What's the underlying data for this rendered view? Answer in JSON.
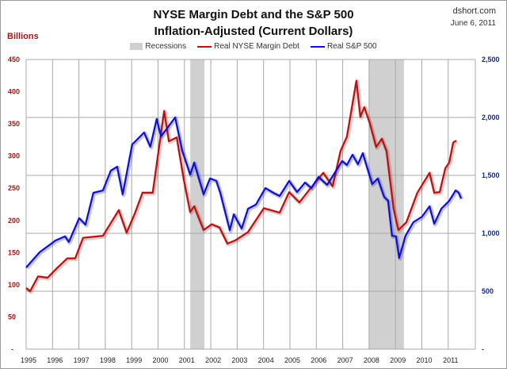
{
  "header": {
    "title": "NYSE Margin Debt and the S&P 500",
    "subtitle": "Inflation-Adjusted (Current Dollars)",
    "source": "dshort.com",
    "date": "June 6, 2011",
    "left_unit": "Billions"
  },
  "chart_data": {
    "type": "line",
    "title": "NYSE Margin Debt and the S&P 500 Inflation-Adjusted (Current Dollars)",
    "xlabel": "",
    "ylabel": "Billions",
    "xlim": [
      1995,
      2012
    ],
    "ylim_left": [
      0,
      450
    ],
    "ylim_right": [
      0,
      2500
    ],
    "x_ticks": [
      "1995",
      "1996",
      "1997",
      "1998",
      "1999",
      "2000",
      "2001",
      "2002",
      "2003",
      "2004",
      "2005",
      "2006",
      "2007",
      "2008",
      "2009",
      "2010",
      "2011"
    ],
    "left_ticks": [
      "-",
      "50",
      "100",
      "150",
      "200",
      "250",
      "300",
      "350",
      "400",
      "450"
    ],
    "right_ticks": [
      "-",
      "500",
      "1,000",
      "1,500",
      "2,000",
      "2,500"
    ],
    "grid": true,
    "legend_position": "top-center",
    "legend": [
      "Recessions",
      "Real NYSE Margin Debt",
      "Real S&P 500"
    ],
    "colors": {
      "margin": "#b01515",
      "sp500": "#1010c8",
      "recession": "#d0d0d0",
      "left_axis": "#a01818",
      "right_axis": "#1a2a80"
    },
    "recessions": [
      [
        2001.22,
        2001.76
      ],
      [
        2008.0,
        2009.32
      ]
    ],
    "series": [
      {
        "name": "Real NYSE Margin Debt",
        "axis": "left",
        "points": [
          [
            1995.0,
            95
          ],
          [
            1995.15,
            90
          ],
          [
            1995.45,
            113
          ],
          [
            1995.81,
            111
          ],
          [
            1996.17,
            126
          ],
          [
            1996.56,
            141
          ],
          [
            1996.86,
            141
          ],
          [
            1997.16,
            173
          ],
          [
            1997.91,
            176
          ],
          [
            1998.51,
            216
          ],
          [
            1998.81,
            181
          ],
          [
            1999.11,
            210
          ],
          [
            1999.41,
            243
          ],
          [
            1999.8,
            243
          ],
          [
            2000.23,
            370
          ],
          [
            2000.41,
            323
          ],
          [
            2000.71,
            329
          ],
          [
            2000.98,
            263
          ],
          [
            2001.22,
            213
          ],
          [
            2001.37,
            222
          ],
          [
            2001.73,
            185
          ],
          [
            2002.03,
            194
          ],
          [
            2002.33,
            189
          ],
          [
            2002.63,
            164
          ],
          [
            2002.93,
            169
          ],
          [
            2003.41,
            182
          ],
          [
            2004.01,
            219
          ],
          [
            2004.61,
            212
          ],
          [
            2004.97,
            244
          ],
          [
            2005.36,
            228
          ],
          [
            2005.72,
            247
          ],
          [
            2006.26,
            274
          ],
          [
            2006.62,
            253
          ],
          [
            2006.92,
            308
          ],
          [
            2007.16,
            330
          ],
          [
            2007.52,
            417
          ],
          [
            2007.67,
            361
          ],
          [
            2007.82,
            376
          ],
          [
            2008.03,
            351
          ],
          [
            2008.27,
            314
          ],
          [
            2008.48,
            327
          ],
          [
            2008.66,
            308
          ],
          [
            2008.93,
            218
          ],
          [
            2009.11,
            185
          ],
          [
            2009.41,
            197
          ],
          [
            2009.83,
            243
          ],
          [
            2010.29,
            274
          ],
          [
            2010.47,
            243
          ],
          [
            2010.68,
            244
          ],
          [
            2010.89,
            281
          ],
          [
            2011.04,
            290
          ],
          [
            2011.19,
            321
          ],
          [
            2011.31,
            324
          ]
        ]
      },
      {
        "name": "Real S&P 500",
        "axis": "right",
        "points": [
          [
            1995.0,
            705
          ],
          [
            1995.51,
            836
          ],
          [
            1996.11,
            938
          ],
          [
            1996.47,
            973
          ],
          [
            1996.62,
            925
          ],
          [
            1997.01,
            1130
          ],
          [
            1997.25,
            1075
          ],
          [
            1997.55,
            1349
          ],
          [
            1997.91,
            1370
          ],
          [
            1998.21,
            1541
          ],
          [
            1998.45,
            1575
          ],
          [
            1998.66,
            1336
          ],
          [
            1999.02,
            1767
          ],
          [
            1999.47,
            1870
          ],
          [
            1999.71,
            1747
          ],
          [
            1999.95,
            1986
          ],
          [
            2000.11,
            1836
          ],
          [
            2000.38,
            1918
          ],
          [
            2000.65,
            2000
          ],
          [
            2000.92,
            1712
          ],
          [
            2001.22,
            1507
          ],
          [
            2001.37,
            1610
          ],
          [
            2001.73,
            1336
          ],
          [
            2001.97,
            1473
          ],
          [
            2002.21,
            1452
          ],
          [
            2002.36,
            1349
          ],
          [
            2002.72,
            1027
          ],
          [
            2002.87,
            1164
          ],
          [
            2003.17,
            1041
          ],
          [
            2003.41,
            1212
          ],
          [
            2003.71,
            1247
          ],
          [
            2004.07,
            1390
          ],
          [
            2004.37,
            1349
          ],
          [
            2004.61,
            1322
          ],
          [
            2004.97,
            1452
          ],
          [
            2005.27,
            1356
          ],
          [
            2005.57,
            1438
          ],
          [
            2005.81,
            1390
          ],
          [
            2006.08,
            1486
          ],
          [
            2006.41,
            1418
          ],
          [
            2006.98,
            1623
          ],
          [
            2007.16,
            1589
          ],
          [
            2007.37,
            1678
          ],
          [
            2007.58,
            1596
          ],
          [
            2007.76,
            1692
          ],
          [
            2008.12,
            1425
          ],
          [
            2008.33,
            1473
          ],
          [
            2008.57,
            1315
          ],
          [
            2008.72,
            1281
          ],
          [
            2008.87,
            979
          ],
          [
            2009.02,
            973
          ],
          [
            2009.14,
            788
          ],
          [
            2009.38,
            979
          ],
          [
            2009.68,
            1096
          ],
          [
            2010.01,
            1144
          ],
          [
            2010.29,
            1233
          ],
          [
            2010.47,
            1082
          ],
          [
            2010.74,
            1212
          ],
          [
            2011.04,
            1281
          ],
          [
            2011.28,
            1370
          ],
          [
            2011.4,
            1349
          ],
          [
            2011.49,
            1301
          ]
        ]
      }
    ]
  }
}
